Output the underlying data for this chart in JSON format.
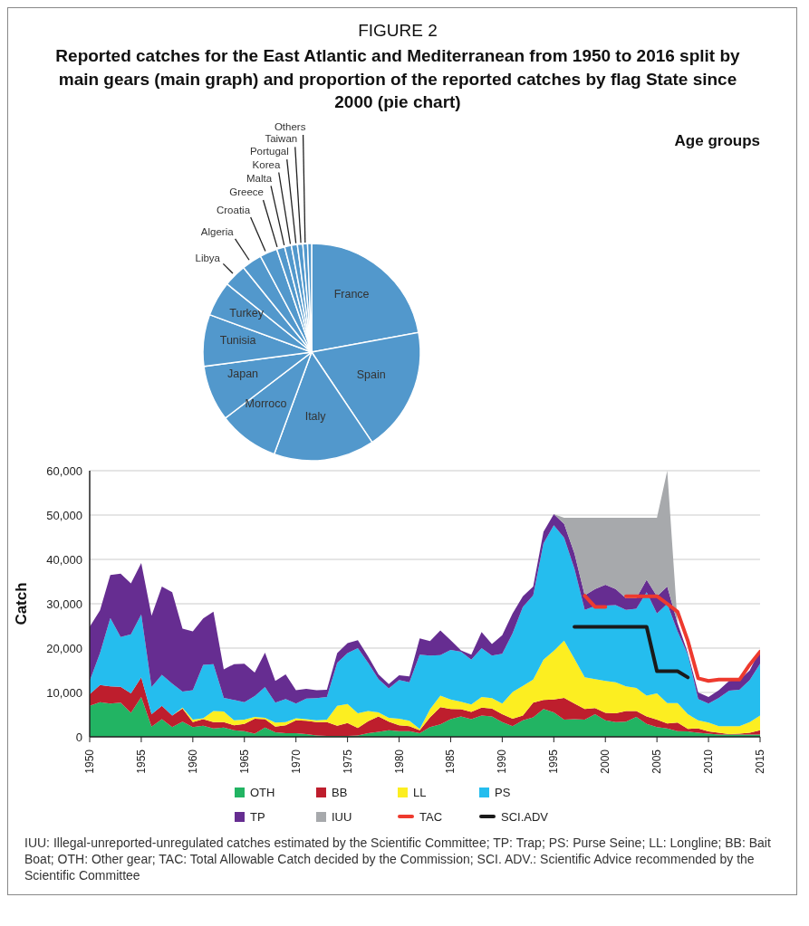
{
  "chart_data": [
    {
      "type": "pie",
      "title": "Reported catches for the East Atlantic and Mediterranean from 1950 to 2016 split by main gears (main graph) and proportion of the reported catches by flag State since 2000 (pie chart)",
      "annotations": [
        "FIGURE 2",
        "Age groups"
      ],
      "categories": [
        "France",
        "Spain",
        "Italy",
        "Morroco",
        "Japan",
        "Tunisia",
        "Turkey",
        "Libya",
        "Algeria",
        "Croatia",
        "Greece",
        "Malta",
        "Korea",
        "Portugal",
        "Taiwan",
        "Others"
      ],
      "values": [
        22.1,
        18.5,
        15,
        9,
        8.3,
        7.7,
        5.2,
        3.4,
        3,
        2.6,
        1.2,
        1,
        0.9,
        0.8,
        0.7,
        0.6
      ],
      "colors": [
        "#5298cc",
        "#5298cc",
        "#5298cc",
        "#5298cc",
        "#5298cc",
        "#5298cc",
        "#5298cc",
        "#5298cc",
        "#5298cc",
        "#5298cc",
        "#5298cc",
        "#5298cc",
        "#5298cc",
        "#5298cc",
        "#5298cc",
        "#5298cc"
      ]
    },
    {
      "type": "area",
      "ylabel": "Catch",
      "stacked": true,
      "grid": "y",
      "legend": "bottom",
      "xlim": [
        1950,
        2015
      ],
      "xticks": [
        1950,
        1955,
        1960,
        1965,
        1970,
        1975,
        1980,
        1985,
        1990,
        1995,
        2000,
        2005,
        2010,
        2015
      ],
      "ylim": [
        0,
        60000
      ],
      "yticks": [
        0,
        {
          "value": 10000,
          "label": "10,000"
        },
        {
          "value": 20000,
          "label": "20,000"
        },
        {
          "value": 30000,
          "label": "30,000"
        },
        {
          "value": 40000,
          "label": "40,000"
        },
        {
          "value": 50000,
          "label": "50,000"
        },
        {
          "value": 60000,
          "label": "60,000"
        }
      ],
      "annotations": [
        "IUU: Illegal-unreported-unregulated catches estimated by the Scientific Committee; TP: Trap; PS: Purse Seine; LL: Longline; BB: Bait Boat; OTH: Other gear; TAC: Total Allowable Catch decided by the Commission; SCI. ADV.: Scientific Advice recommended by the Scientific Committee"
      ],
      "x": [
        1950,
        1951,
        1952,
        1953,
        1954,
        1955,
        1956,
        1957,
        1958,
        1959,
        1960,
        1961,
        1962,
        1963,
        1964,
        1965,
        1966,
        1967,
        1968,
        1969,
        1970,
        1971,
        1972,
        1973,
        1974,
        1975,
        1976,
        1977,
        1978,
        1979,
        1980,
        1981,
        1982,
        1983,
        1984,
        1985,
        1986,
        1987,
        1988,
        1989,
        1990,
        1991,
        1992,
        1993,
        1994,
        1995,
        1996,
        1997,
        1998,
        1999,
        2000,
        2001,
        2002,
        2003,
        2004,
        2005,
        2006,
        2007,
        2008,
        2009,
        2010,
        2011,
        2012,
        2013,
        2014,
        2015
      ],
      "series": [
        {
          "name": "OTH",
          "color": "#22b463",
          "values": [
            7000,
            7800,
            7500,
            7700,
            5400,
            9000,
            2300,
            4000,
            2200,
            3400,
            2200,
            2500,
            1900,
            2100,
            1500,
            1300,
            700,
            2100,
            1000,
            800,
            800,
            600,
            300,
            200,
            200,
            200,
            300,
            800,
            1100,
            1500,
            1300,
            1300,
            800,
            2200,
            2800,
            4000,
            4600,
            4000,
            4800,
            4600,
            3300,
            2400,
            3700,
            4400,
            6300,
            5500,
            3900,
            4000,
            3900,
            5100,
            3700,
            3300,
            3400,
            4500,
            2900,
            2200,
            1900,
            1300,
            1200,
            900,
            700,
            500,
            500,
            500,
            500,
            500
          ]
        },
        {
          "name": "BB",
          "color": "#be1e2d",
          "values": [
            2600,
            3900,
            3900,
            3600,
            4400,
            4400,
            2800,
            3000,
            2600,
            3000,
            1100,
            1500,
            1400,
            1200,
            1100,
            1600,
            3400,
            1900,
            1300,
            1800,
            2900,
            3000,
            3000,
            3100,
            2300,
            2900,
            1700,
            2700,
            3500,
            1900,
            1300,
            1100,
            700,
            2200,
            3900,
            2300,
            1600,
            1600,
            1800,
            1800,
            1800,
            1700,
            1100,
            3300,
            2000,
            2900,
            4900,
            3500,
            2400,
            1400,
            1700,
            2000,
            2400,
            1300,
            1700,
            1700,
            1100,
            1900,
            600,
            1000,
            500,
            400,
            100,
            200,
            400,
            1000
          ]
        },
        {
          "name": "LL",
          "color": "#fcee21",
          "values": [
            0,
            0,
            0,
            0,
            0,
            0,
            0,
            0,
            0,
            200,
            600,
            200,
            2500,
            2400,
            1100,
            1000,
            400,
            300,
            900,
            700,
            500,
            400,
            400,
            600,
            4500,
            4300,
            3300,
            2300,
            900,
            900,
            1500,
            1200,
            300,
            1800,
            2600,
            2100,
            1700,
            1700,
            2400,
            2300,
            2400,
            6000,
            6700,
            5200,
            9100,
            11000,
            12900,
            10100,
            7100,
            6500,
            7200,
            7000,
            5600,
            5200,
            4700,
            5900,
            4600,
            4400,
            3300,
            1800,
            2000,
            1500,
            1800,
            1700,
            2400,
            3300
          ]
        },
        {
          "name": "PS",
          "color": "#25bdee",
          "values": [
            3000,
            7200,
            15400,
            11200,
            13300,
            14200,
            6100,
            7000,
            7200,
            3600,
            6600,
            12000,
            10600,
            3100,
            4600,
            3900,
            4700,
            6900,
            4500,
            5200,
            3300,
            4600,
            5000,
            5100,
            9700,
            11500,
            14700,
            10900,
            7500,
            6600,
            8700,
            8700,
            16700,
            12100,
            9100,
            11200,
            11300,
            10100,
            11000,
            9600,
            11200,
            13200,
            17800,
            19000,
            26200,
            28300,
            23200,
            20300,
            15200,
            16500,
            17000,
            17400,
            17200,
            17900,
            23300,
            18000,
            22400,
            16200,
            13400,
            4800,
            4300,
            6400,
            8000,
            8200,
            9500,
            11700
          ]
        },
        {
          "name": "TP",
          "color": "#662d91",
          "values": [
            12200,
            9600,
            9700,
            14300,
            11500,
            11600,
            16100,
            19900,
            20600,
            14200,
            13300,
            10500,
            11800,
            6400,
            8100,
            8700,
            5300,
            7800,
            4900,
            5600,
            3000,
            2200,
            1800,
            1600,
            2200,
            2200,
            1800,
            1400,
            1100,
            1000,
            1100,
            1300,
            3700,
            3300,
            5600,
            2200,
            300,
            1100,
            3600,
            2600,
            4200,
            4500,
            2400,
            2000,
            2600,
            2500,
            3100,
            3500,
            3300,
            3800,
            4700,
            3600,
            2600,
            2400,
            2800,
            3900,
            3900,
            1800,
            400,
            1500,
            1500,
            1700,
            2200,
            2200,
            2200,
            3100
          ]
        },
        {
          "name": "IUU",
          "color": "#a7a9ac",
          "values": [
            null,
            null,
            null,
            null,
            null,
            null,
            null,
            null,
            null,
            null,
            null,
            null,
            null,
            null,
            null,
            null,
            null,
            null,
            null,
            null,
            null,
            null,
            null,
            null,
            null,
            null,
            null,
            null,
            null,
            null,
            null,
            null,
            null,
            null,
            null,
            null,
            null,
            null,
            null,
            null,
            null,
            null,
            null,
            null,
            null,
            0,
            1400,
            8000,
            17500,
            16100,
            15100,
            16100,
            18200,
            18100,
            14000,
            17700,
            26100,
            0,
            null,
            null,
            null,
            null,
            null,
            null,
            null,
            null
          ]
        },
        {
          "name": "TAC",
          "type": "line",
          "color": "#ee3a2e",
          "values": [
            null,
            null,
            null,
            null,
            null,
            null,
            null,
            null,
            null,
            null,
            null,
            null,
            null,
            null,
            null,
            null,
            null,
            null,
            null,
            null,
            null,
            null,
            null,
            null,
            null,
            null,
            null,
            null,
            null,
            null,
            null,
            null,
            null,
            null,
            null,
            null,
            null,
            null,
            null,
            null,
            null,
            null,
            null,
            null,
            null,
            null,
            null,
            null,
            31800,
            29300,
            29300,
            null,
            31700,
            31700,
            31700,
            31700,
            30000,
            28200,
            21600,
            13200,
            12600,
            12900,
            12900,
            12900,
            16300,
            19200
          ]
        },
        {
          "name": "SCI.ADV",
          "type": "line",
          "color": "#1a1a1a",
          "values": [
            null,
            null,
            null,
            null,
            null,
            null,
            null,
            null,
            null,
            null,
            null,
            null,
            null,
            null,
            null,
            null,
            null,
            null,
            null,
            null,
            null,
            null,
            null,
            null,
            null,
            null,
            null,
            null,
            null,
            null,
            null,
            null,
            null,
            null,
            null,
            null,
            null,
            null,
            null,
            null,
            null,
            null,
            null,
            null,
            null,
            null,
            null,
            24800,
            24800,
            24800,
            24800,
            24800,
            24800,
            24800,
            24800,
            14800,
            14800,
            14800,
            13400,
            null,
            null,
            null,
            null,
            null,
            null,
            null
          ]
        }
      ]
    }
  ]
}
